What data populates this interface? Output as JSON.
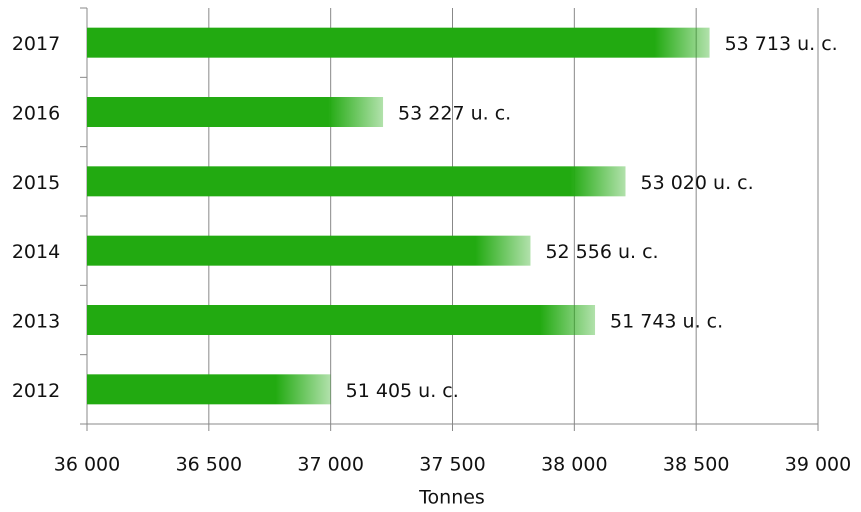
{
  "chart_data": {
    "type": "barh",
    "x_label": "Tonnes",
    "categories": [
      "2012",
      "2013",
      "2014",
      "2015",
      "2016",
      "2017"
    ],
    "values": [
      37000,
      38085,
      37820,
      38210,
      37215,
      38555
    ],
    "annotations": [
      "51 405 u. c.",
      "51 743 u. c.",
      "52 556 u. c.",
      "53 020 u. c.",
      "53 227 u. c.",
      "53 713 u. c."
    ],
    "color": "#22aa11",
    "xlim": [
      36000,
      39000
    ],
    "xticks": [
      {
        "value": 36000,
        "label": "36 000"
      },
      {
        "value": 36500,
        "label": "36 500"
      },
      {
        "value": 37000,
        "label": "37 000"
      },
      {
        "value": 37500,
        "label": "37 500"
      },
      {
        "value": 38000,
        "label": "38 000"
      },
      {
        "value": 38500,
        "label": "38 500"
      },
      {
        "value": 39000,
        "label": "39 000"
      }
    ],
    "grid": true
  }
}
